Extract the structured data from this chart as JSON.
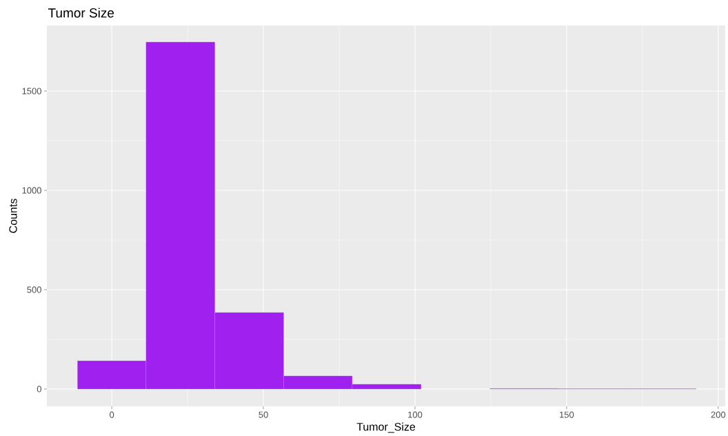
{
  "chart_data": {
    "type": "histogram",
    "title": "Tumor Size",
    "xlabel": "Tumor_Size",
    "ylabel": "Counts",
    "bins": [
      -11.3,
      11.3,
      34,
      56.7,
      79.3,
      102,
      124.7,
      147.3,
      170,
      192.7
    ],
    "values": [
      142,
      1747,
      385,
      66,
      24,
      0,
      2,
      1,
      1
    ],
    "color": "#a020f0",
    "xlim": [
      -21.4,
      202.3
    ],
    "ylim": [
      -87,
      1830
    ],
    "xticks": [
      0,
      50,
      100,
      150,
      200
    ],
    "yticks": [
      0,
      500,
      1000,
      1500
    ],
    "grid": true
  }
}
